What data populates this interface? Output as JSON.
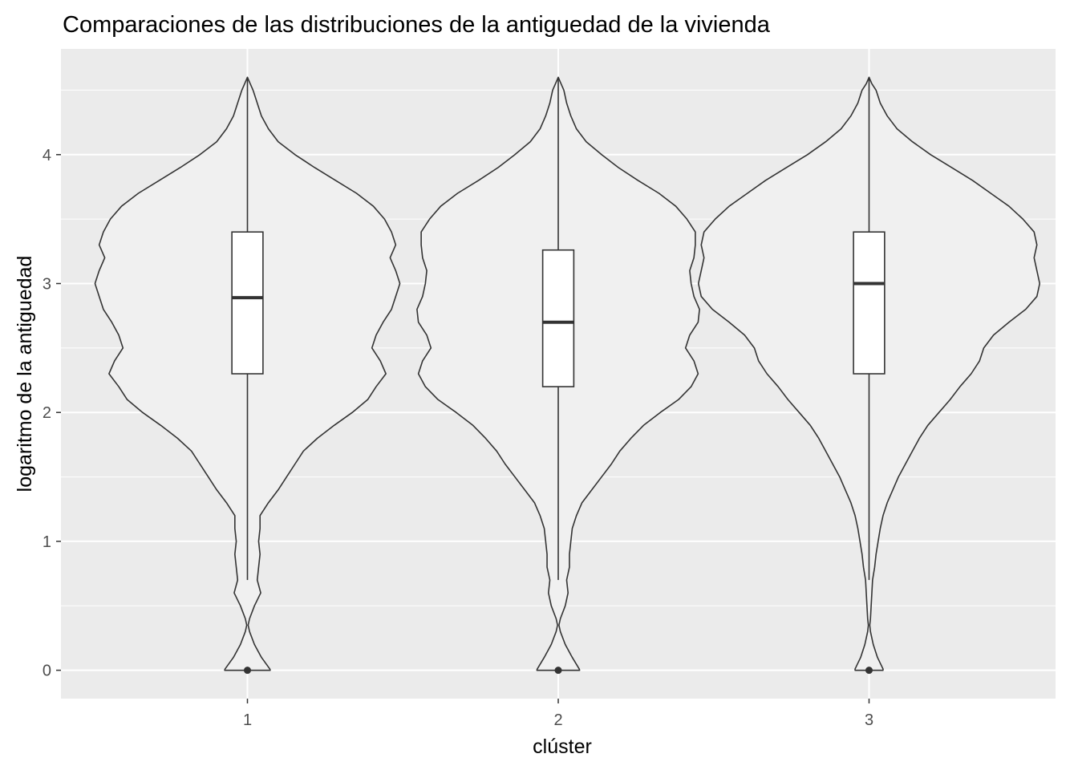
{
  "chart_data": {
    "type": "violin",
    "title": "Comparaciones de las distribuciones de la antiguedad de la vivienda",
    "xlabel": "clúster",
    "ylabel": "logaritmo de la antiguedad",
    "categories": [
      "1",
      "2",
      "3"
    ],
    "ylim": [
      -0.22,
      4.82
    ],
    "y_ticks": [
      0,
      1,
      2,
      3,
      4
    ],
    "y_tick_labels": [
      "0",
      "1",
      "2",
      "3",
      "4"
    ],
    "grid": true,
    "colors": {
      "panel": "#ebebeb",
      "grid": "#ffffff",
      "violin_fill": "#f0f0f0",
      "outline": "#333333",
      "box_fill": "#ffffff"
    },
    "series": [
      {
        "name": "1",
        "density_y": [
          0,
          0.01,
          0.1,
          0.2,
          0.3,
          0.35,
          0.4,
          0.5,
          0.6,
          0.7,
          0.8,
          0.9,
          1.0,
          1.1,
          1.2,
          1.3,
          1.4,
          1.5,
          1.6,
          1.7,
          1.8,
          1.9,
          2.0,
          2.1,
          2.2,
          2.3,
          2.4,
          2.5,
          2.6,
          2.7,
          2.8,
          2.9,
          3.0,
          3.1,
          3.2,
          3.3,
          3.4,
          3.5,
          3.6,
          3.7,
          3.8,
          3.9,
          4.0,
          4.1,
          4.2,
          4.3,
          4.4,
          4.5,
          4.55,
          4.6
        ],
        "density_w": [
          0.163,
          0.16,
          0.1,
          0.05,
          0.015,
          0.005,
          0.015,
          0.05,
          0.095,
          0.07,
          0.08,
          0.09,
          0.08,
          0.09,
          0.09,
          0.15,
          0.22,
          0.28,
          0.34,
          0.4,
          0.5,
          0.62,
          0.75,
          0.86,
          0.92,
          0.99,
          0.95,
          0.89,
          0.92,
          0.97,
          1.03,
          1.06,
          1.09,
          1.06,
          1.02,
          1.06,
          1.03,
          0.98,
          0.9,
          0.78,
          0.63,
          0.48,
          0.34,
          0.22,
          0.15,
          0.1,
          0.07,
          0.04,
          0.02,
          0.0
        ],
        "lower_whisker": 0.7,
        "q1": 2.3,
        "median": 2.89,
        "q3": 3.4,
        "upper_whisker": 4.6,
        "outliers": [
          0
        ]
      },
      {
        "name": "2",
        "density_y": [
          0,
          0.01,
          0.1,
          0.2,
          0.3,
          0.35,
          0.4,
          0.5,
          0.6,
          0.7,
          0.8,
          0.9,
          1.0,
          1.1,
          1.2,
          1.3,
          1.4,
          1.5,
          1.6,
          1.7,
          1.8,
          1.9,
          2.0,
          2.1,
          2.2,
          2.3,
          2.4,
          2.5,
          2.6,
          2.7,
          2.8,
          2.9,
          3.0,
          3.1,
          3.2,
          3.3,
          3.4,
          3.5,
          3.6,
          3.7,
          3.8,
          3.9,
          4.0,
          4.1,
          4.2,
          4.3,
          4.4,
          4.5,
          4.55,
          4.6
        ],
        "density_w": [
          0.153,
          0.15,
          0.1,
          0.05,
          0.015,
          0.005,
          0.015,
          0.05,
          0.07,
          0.06,
          0.08,
          0.08,
          0.09,
          0.1,
          0.13,
          0.17,
          0.24,
          0.31,
          0.38,
          0.44,
          0.52,
          0.61,
          0.73,
          0.86,
          0.95,
          1.0,
          0.97,
          0.91,
          0.94,
          1.0,
          1.01,
          0.97,
          0.95,
          0.94,
          0.97,
          0.98,
          0.98,
          0.92,
          0.84,
          0.72,
          0.57,
          0.43,
          0.31,
          0.2,
          0.13,
          0.09,
          0.06,
          0.04,
          0.02,
          0.0
        ],
        "lower_whisker": 0.7,
        "q1": 2.2,
        "median": 2.7,
        "q3": 3.26,
        "upper_whisker": 4.6,
        "outliers": [
          0
        ]
      },
      {
        "name": "3",
        "density_y": [
          0,
          0.01,
          0.1,
          0.2,
          0.3,
          0.35,
          0.4,
          0.5,
          0.6,
          0.7,
          0.8,
          0.9,
          1.0,
          1.1,
          1.2,
          1.3,
          1.4,
          1.5,
          1.6,
          1.7,
          1.8,
          1.9,
          2.0,
          2.1,
          2.2,
          2.3,
          2.4,
          2.5,
          2.6,
          2.7,
          2.8,
          2.9,
          3.0,
          3.1,
          3.2,
          3.3,
          3.4,
          3.5,
          3.6,
          3.7,
          3.8,
          3.9,
          4.0,
          4.1,
          4.2,
          4.3,
          4.4,
          4.5,
          4.55,
          4.6
        ],
        "density_w": [
          0.1,
          0.1,
          0.06,
          0.03,
          0.01,
          0.005,
          0.01,
          0.015,
          0.02,
          0.025,
          0.04,
          0.05,
          0.065,
          0.08,
          0.1,
          0.13,
          0.17,
          0.21,
          0.26,
          0.31,
          0.36,
          0.42,
          0.5,
          0.58,
          0.65,
          0.73,
          0.79,
          0.82,
          0.89,
          1.0,
          1.12,
          1.2,
          1.22,
          1.2,
          1.18,
          1.2,
          1.18,
          1.1,
          1.0,
          0.87,
          0.74,
          0.59,
          0.44,
          0.31,
          0.2,
          0.13,
          0.08,
          0.05,
          0.02,
          0.0
        ],
        "lower_whisker": 0.7,
        "q1": 2.3,
        "median": 3.0,
        "q3": 3.4,
        "upper_whisker": 4.6,
        "outliers": [
          0
        ]
      }
    ]
  }
}
